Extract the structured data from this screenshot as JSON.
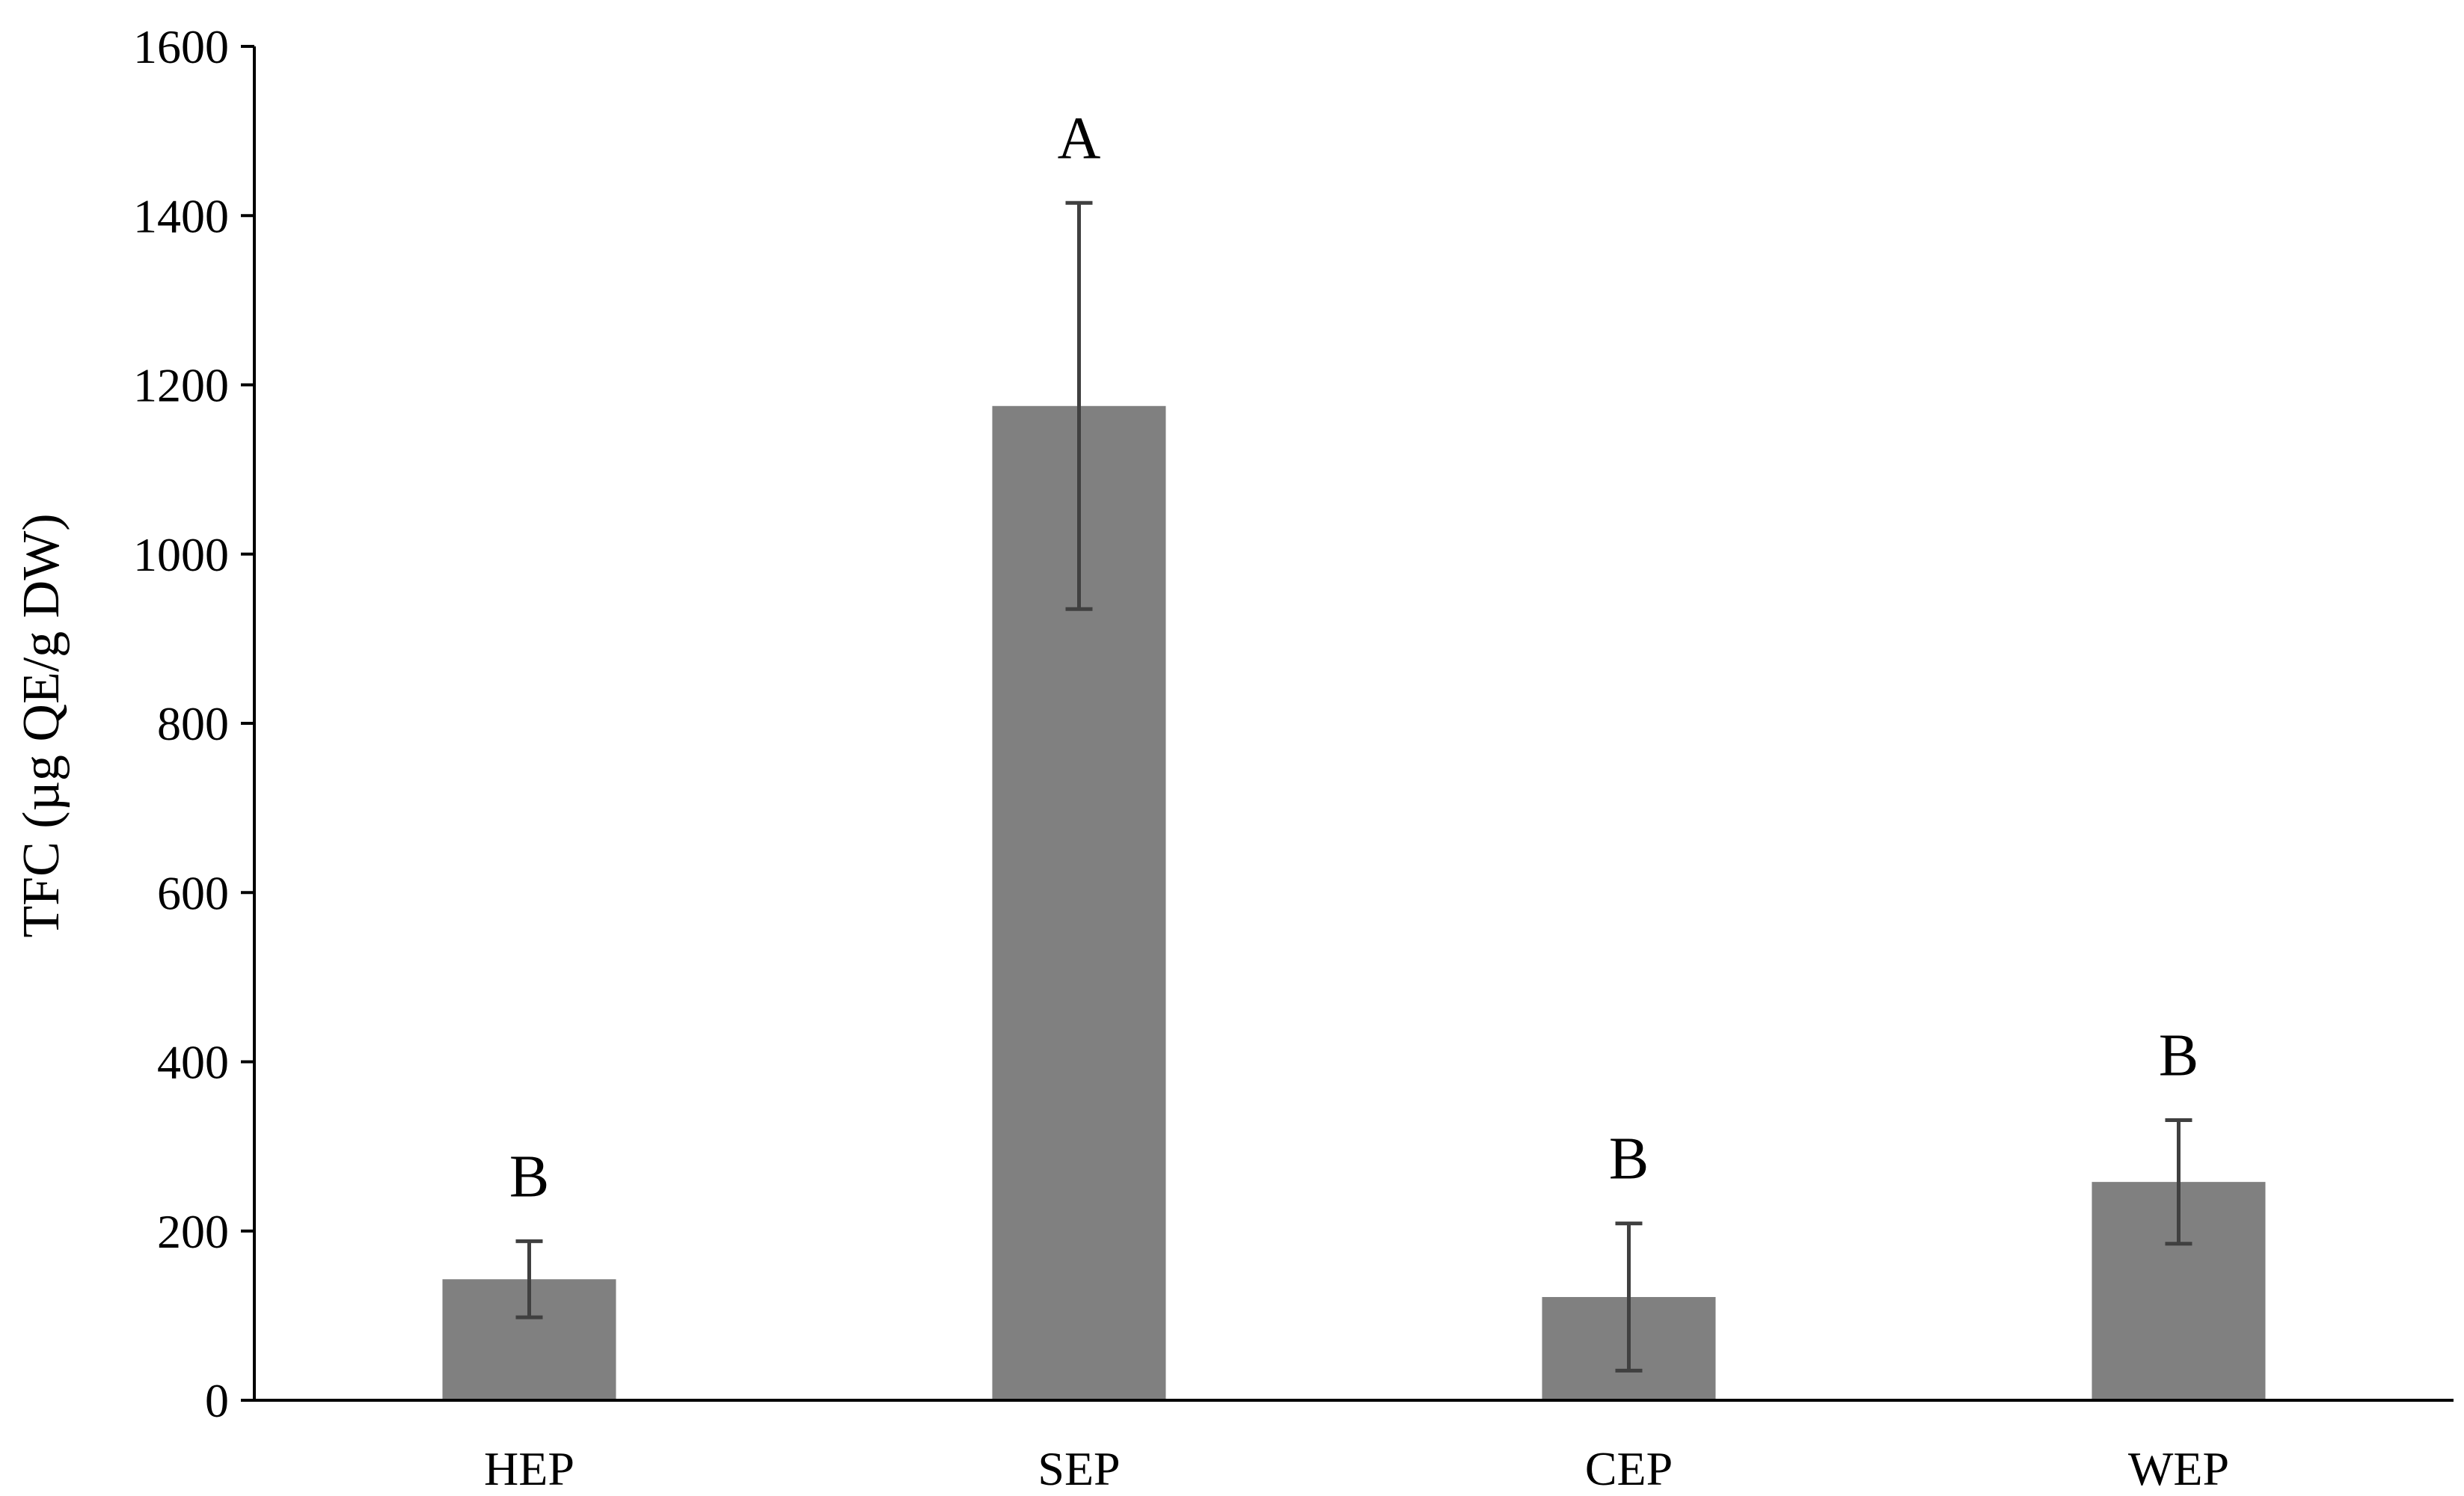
{
  "chart_data": {
    "type": "bar",
    "title": "",
    "xlabel": "",
    "ylabel": "TFC (µg QE/g DW)",
    "categories": [
      "HEP",
      "SEP",
      "CEP",
      "WEP"
    ],
    "values": [
      143,
      1175,
      122,
      258
    ],
    "error": [
      45,
      240,
      87,
      73
    ],
    "significance": [
      "B",
      "A",
      "B",
      "B"
    ],
    "ylim": [
      0,
      1600
    ],
    "yticks": [
      "0",
      "200",
      "400",
      "600",
      "800",
      "1000",
      "1200",
      "1400",
      "1600"
    ],
    "grid": false,
    "legend": "none",
    "colors": {
      "bar": "#808080",
      "error_bar": "#404040",
      "axis": "#000000"
    }
  }
}
